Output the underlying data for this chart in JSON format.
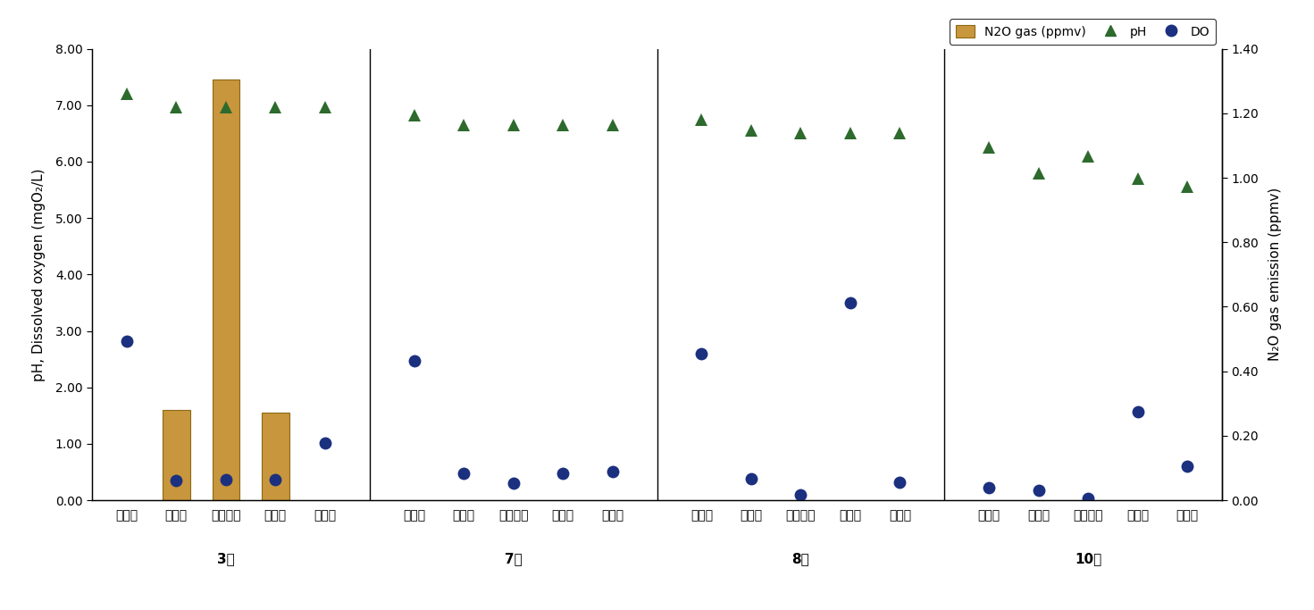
{
  "months": [
    "3月",
    "7月",
    "8月",
    "10月"
  ],
  "categories": [
    "유입수",
    "협기조",
    "무산소조",
    "호기조",
    "유출수"
  ],
  "N2O": {
    "3月": [
      0,
      1.6,
      7.45,
      1.55,
      0
    ],
    "7月": [
      0,
      0,
      0,
      0,
      0
    ],
    "8月": [
      0,
      0,
      0,
      0,
      0
    ],
    "10月": [
      0,
      0,
      0,
      0,
      0
    ]
  },
  "pH": {
    "3月": [
      7.2,
      6.97,
      6.97,
      6.97,
      6.97
    ],
    "7月": [
      6.82,
      6.65,
      6.65,
      6.65,
      6.65
    ],
    "8月": [
      6.75,
      6.55,
      6.5,
      6.5,
      6.5
    ],
    "10月": [
      6.25,
      5.8,
      6.1,
      5.7,
      5.55
    ]
  },
  "DO": {
    "3月": [
      2.82,
      0.35,
      0.37,
      0.37,
      1.01
    ],
    "7月": [
      2.47,
      0.47,
      0.3,
      0.47,
      0.5
    ],
    "8月": [
      2.6,
      0.38,
      0.1,
      3.5,
      0.32
    ],
    "10月": [
      0.23,
      0.17,
      0.03,
      1.57,
      0.6
    ]
  },
  "ylim_left": [
    0,
    8.0
  ],
  "ylim_right": [
    0,
    1.4
  ],
  "yticks_left": [
    0.0,
    1.0,
    2.0,
    3.0,
    4.0,
    5.0,
    6.0,
    7.0,
    8.0
  ],
  "yticks_right": [
    0.0,
    0.2,
    0.4,
    0.6,
    0.8,
    1.0,
    1.2,
    1.4
  ],
  "ylabel_left": "pH, Dissolved oxygen (mgO₂/L)",
  "ylabel_right": "N₂O gas emission (ppmv)",
  "legend_labels": [
    "N2O gas (ppmv)",
    "pH",
    "DO"
  ],
  "bar_color": "#C8963C",
  "bar_edge_color": "#8B6914",
  "pH_color": "#2D6A2D",
  "DO_color": "#1C3080",
  "background_color": "#FFFFFF",
  "bar_width": 0.55,
  "figsize": [
    14.71,
    6.83
  ],
  "dpi": 100
}
